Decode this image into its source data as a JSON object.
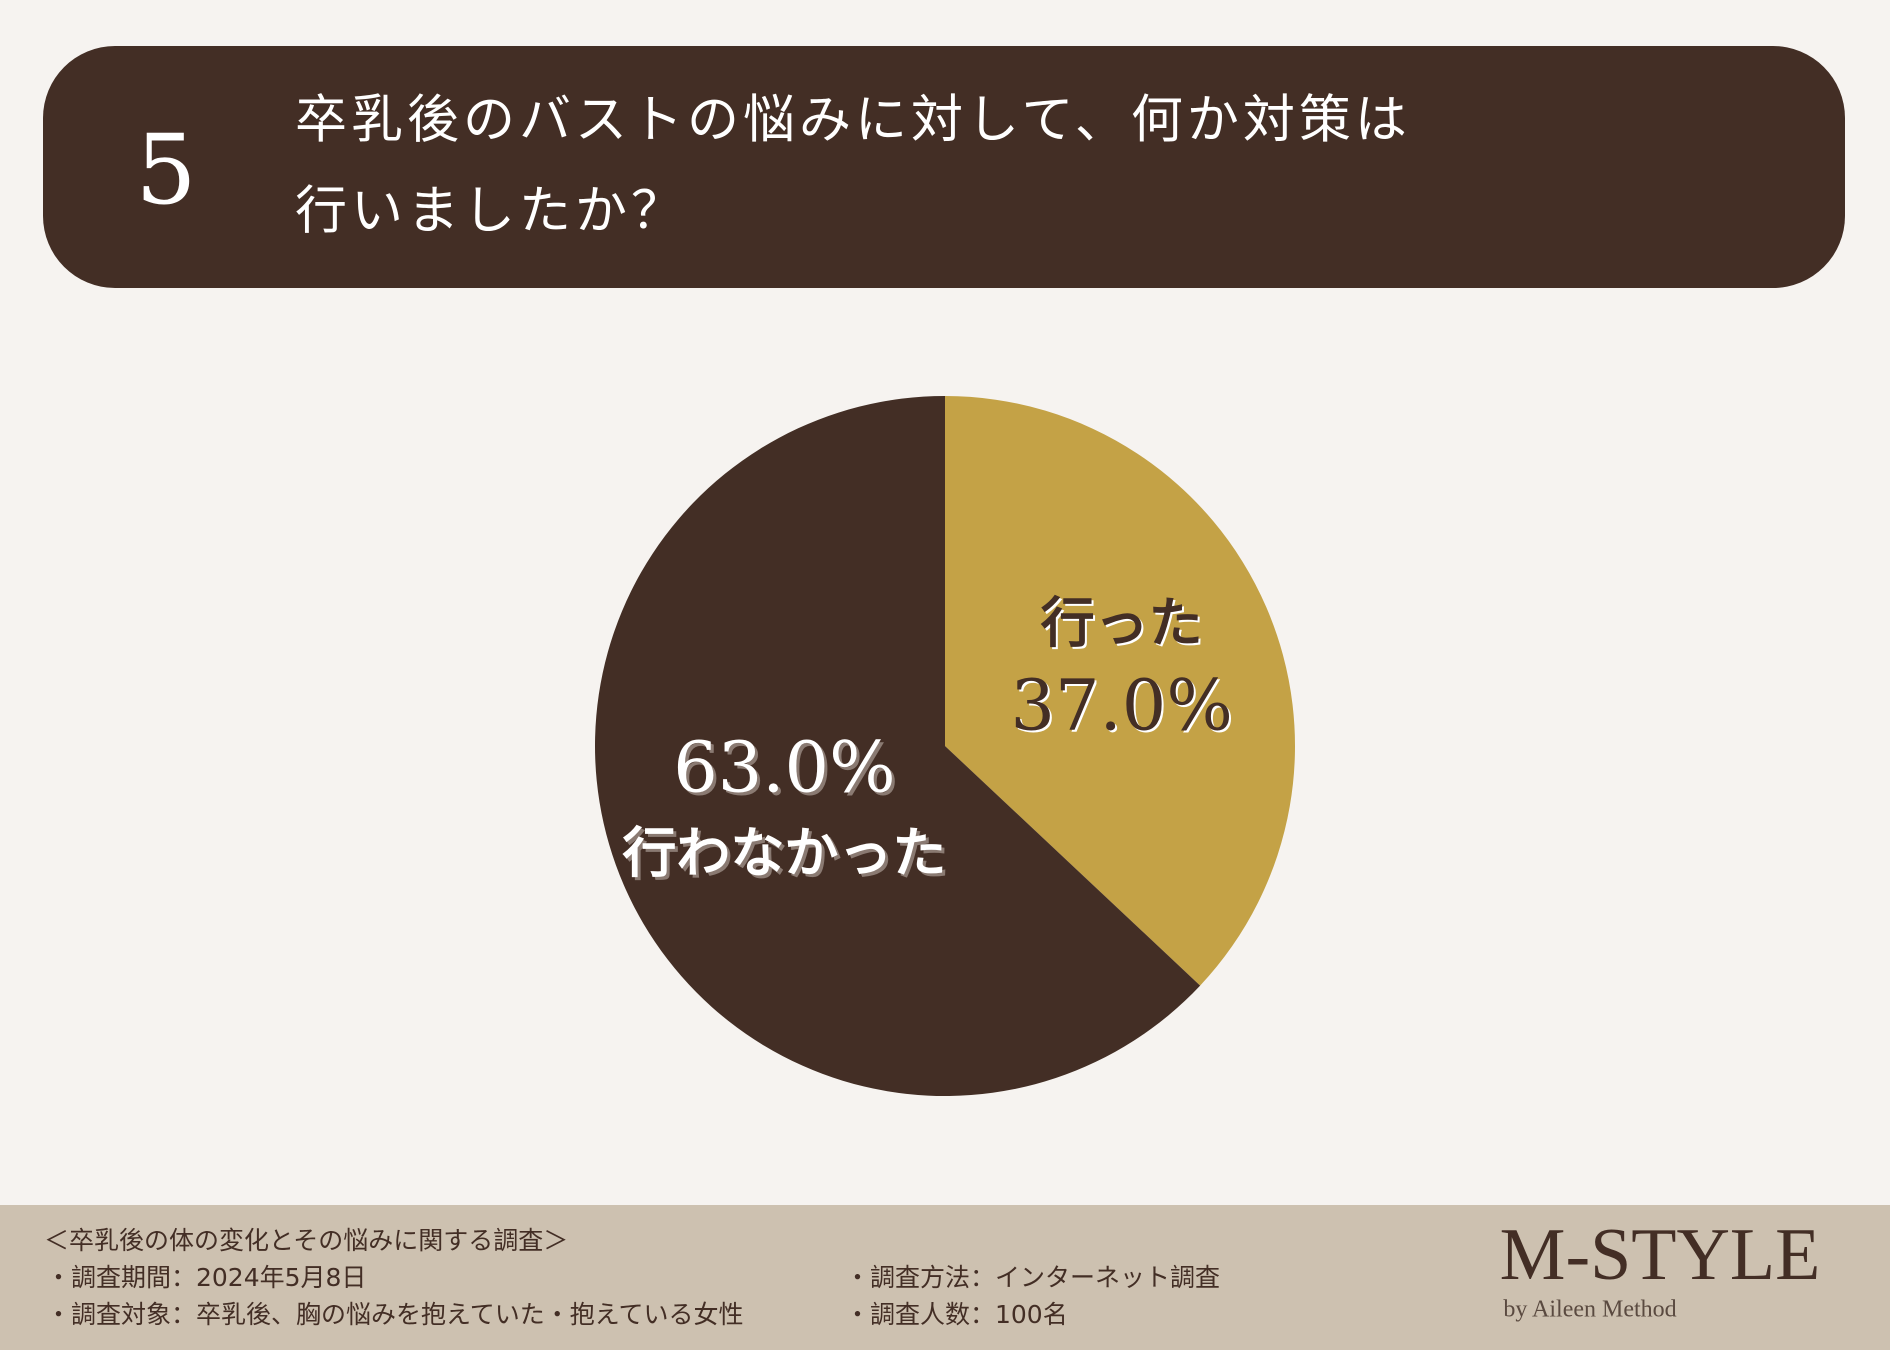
{
  "question_number": "5",
  "chart_data": {
    "type": "pie",
    "title": [
      "卒乳後のバストの悩みに対して、何か対策は",
      "行いましたか？"
    ],
    "categories": [
      "行った",
      "行わなかった"
    ],
    "values": [
      37.0,
      63.0
    ],
    "value_labels": [
      "37.0%",
      "63.0%"
    ],
    "colors": [
      "#c4a246",
      "#432e25"
    ],
    "label_colors": [
      "#432e25",
      "#ffffff"
    ]
  },
  "footer": {
    "heading": "＜卒乳後の体の変化とその悩みに関する調査＞",
    "items": [
      "・調査期間：2024年5月8日",
      "・調査対象：卒乳後、胸の悩みを抱えていた・抱えている女性",
      "・調査方法：インターネット調査",
      "・調査人数：100名"
    ],
    "logo": "M-STYLE",
    "logo_sub": "by Aileen Method"
  }
}
